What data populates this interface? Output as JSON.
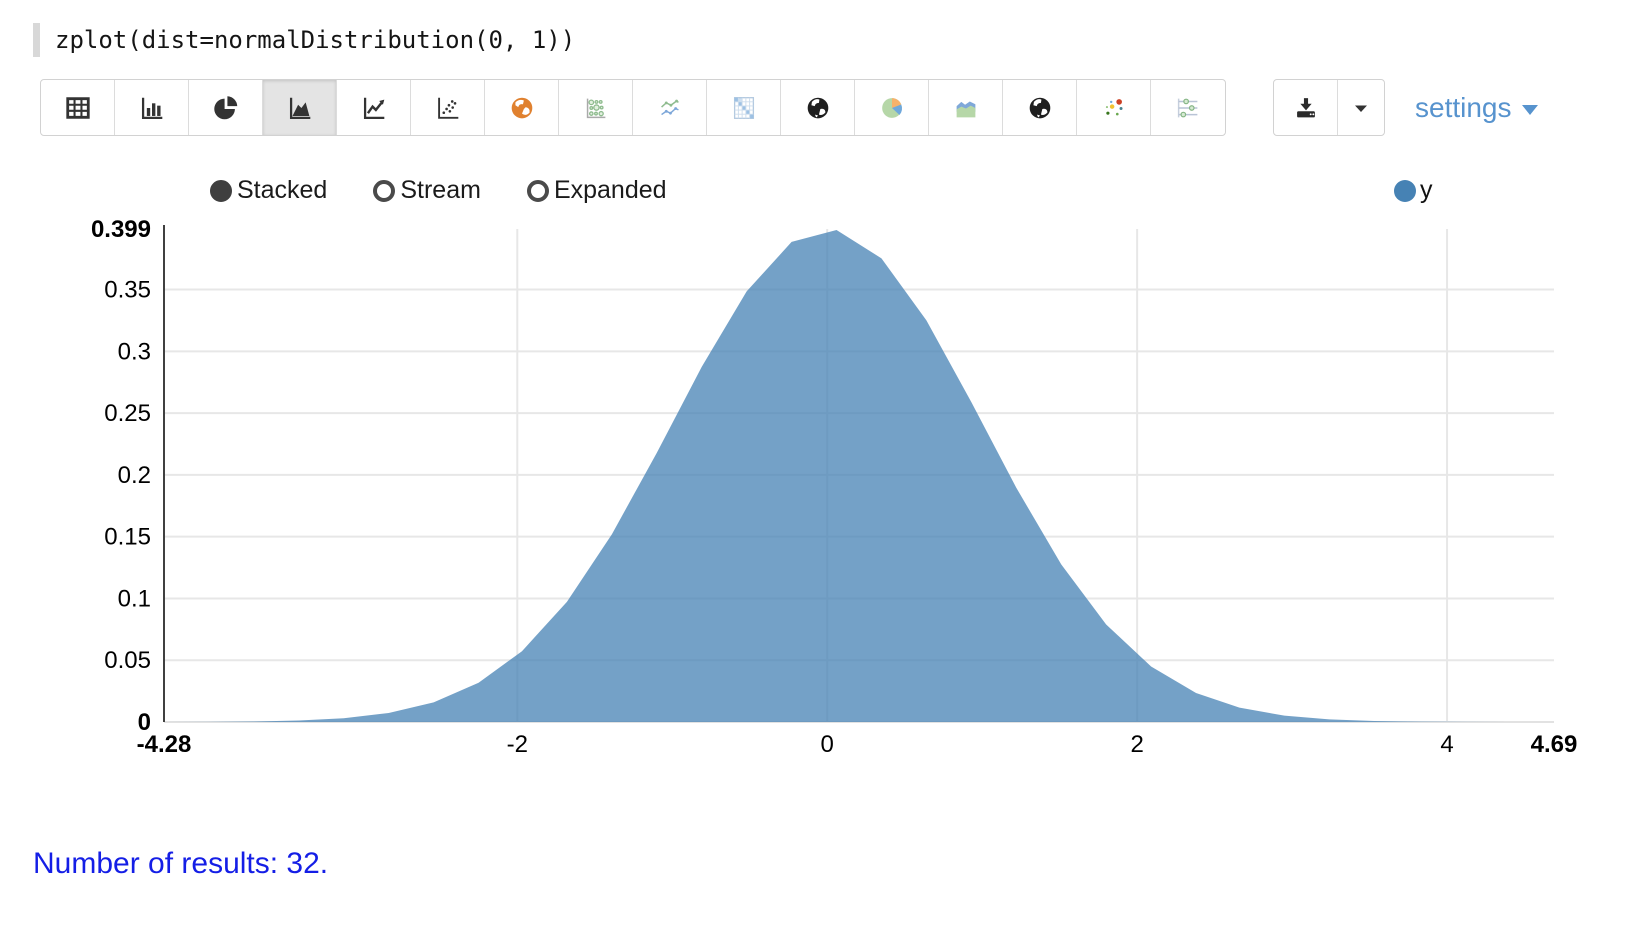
{
  "code_line": {
    "text": "zplot(dist=normalDistribution(0, 1))"
  },
  "toolbar": {
    "chart_type_buttons": [
      {
        "name": "table",
        "selected": false
      },
      {
        "name": "bar-chart",
        "selected": false
      },
      {
        "name": "pie-chart",
        "selected": false
      },
      {
        "name": "area-chart",
        "selected": true
      },
      {
        "name": "line-chart",
        "selected": false
      },
      {
        "name": "scatter-plot",
        "selected": false
      },
      {
        "name": "geo-map-orange",
        "selected": false
      },
      {
        "name": "bubble-chart",
        "selected": false
      },
      {
        "name": "multi-line-chart",
        "selected": false
      },
      {
        "name": "heatmap",
        "selected": false
      },
      {
        "name": "world-map-1",
        "selected": false
      },
      {
        "name": "pie-chart-colored",
        "selected": false
      },
      {
        "name": "area-chart-colored",
        "selected": false
      },
      {
        "name": "world-map-2",
        "selected": false
      },
      {
        "name": "scatter-colored",
        "selected": false
      },
      {
        "name": "parallel-coordinates",
        "selected": false
      }
    ],
    "settings_label": "settings"
  },
  "controls": {
    "options": [
      {
        "label": "Stacked",
        "selected": true
      },
      {
        "label": "Stream",
        "selected": false
      },
      {
        "label": "Expanded",
        "selected": false
      }
    ]
  },
  "legend": {
    "items": [
      {
        "label": "y",
        "color": "#4682b4"
      }
    ]
  },
  "chart_data": {
    "type": "area",
    "title": "",
    "xlabel": "",
    "ylabel": "",
    "xlim": [
      -4.28,
      4.69
    ],
    "ylim": [
      0,
      0.399
    ],
    "grid": true,
    "legend_position": "top-right",
    "series": [
      {
        "name": "y",
        "color": "#4682b4",
        "fill_opacity": 0.75,
        "x": [
          -4.28,
          -3.99,
          -3.7,
          -3.41,
          -3.12,
          -2.83,
          -2.54,
          -2.25,
          -1.97,
          -1.68,
          -1.39,
          -1.1,
          -0.81,
          -0.52,
          -0.23,
          0.06,
          0.35,
          0.64,
          0.93,
          1.22,
          1.51,
          1.8,
          2.09,
          2.38,
          2.66,
          2.95,
          3.24,
          3.53,
          3.82,
          4.11,
          4.4,
          4.69
        ],
        "y": [
          4e-05,
          0.00014,
          0.00043,
          0.00119,
          0.00307,
          0.00728,
          0.01587,
          0.03174,
          0.0573,
          0.09727,
          0.15183,
          0.21785,
          0.28737,
          0.34849,
          0.38853,
          0.39822,
          0.37524,
          0.32506,
          0.25888,
          0.18955,
          0.12757,
          0.07895,
          0.04491,
          0.02348,
          0.0116,
          0.00514,
          0.00209,
          0.00079,
          0.00027,
          9e-05,
          3e-05,
          1e-05
        ]
      }
    ],
    "x_ticks": [
      {
        "v": -4.28,
        "label": "-4.28",
        "bold": true,
        "grid": false
      },
      {
        "v": -2,
        "label": "-2",
        "bold": false,
        "grid": true
      },
      {
        "v": 0,
        "label": "0",
        "bold": false,
        "grid": true
      },
      {
        "v": 2,
        "label": "2",
        "bold": false,
        "grid": true
      },
      {
        "v": 4,
        "label": "4",
        "bold": false,
        "grid": true
      },
      {
        "v": 4.69,
        "label": "4.69",
        "bold": true,
        "grid": false
      }
    ],
    "y_ticks": [
      {
        "v": 0,
        "label": "0",
        "bold": true,
        "grid": false
      },
      {
        "v": 0.05,
        "label": "0.05",
        "bold": false,
        "grid": true
      },
      {
        "v": 0.1,
        "label": "0.1",
        "bold": false,
        "grid": true
      },
      {
        "v": 0.15,
        "label": "0.15",
        "bold": false,
        "grid": true
      },
      {
        "v": 0.2,
        "label": "0.2",
        "bold": false,
        "grid": true
      },
      {
        "v": 0.25,
        "label": "0.25",
        "bold": false,
        "grid": true
      },
      {
        "v": 0.3,
        "label": "0.3",
        "bold": false,
        "grid": true
      },
      {
        "v": 0.35,
        "label": "0.35",
        "bold": false,
        "grid": true
      },
      {
        "v": 0.399,
        "label": "0.399",
        "bold": true,
        "grid": false
      }
    ]
  },
  "results_text": "Number of results: 32."
}
